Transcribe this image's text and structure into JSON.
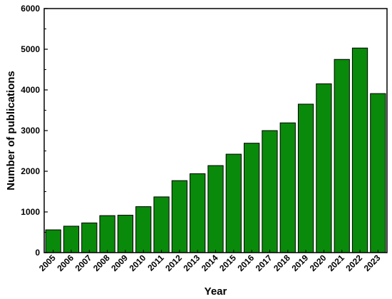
{
  "chart_data": {
    "type": "bar",
    "title": "",
    "xlabel": "Year",
    "ylabel": "Number of publications",
    "categories": [
      "2005",
      "2006",
      "2007",
      "2008",
      "2009",
      "2010",
      "2011",
      "2012",
      "2013",
      "2014",
      "2015",
      "2016",
      "2017",
      "2018",
      "2019",
      "2020",
      "2021",
      "2022",
      "2023"
    ],
    "values": [
      560,
      650,
      730,
      910,
      920,
      1130,
      1370,
      1770,
      1940,
      2140,
      2420,
      2690,
      3000,
      3190,
      3650,
      4150,
      4750,
      5030,
      3910
    ],
    "ylim": [
      0,
      6000
    ],
    "yticks": [
      0,
      1000,
      2000,
      3000,
      4000,
      5000,
      6000
    ],
    "grid": false,
    "colors": {
      "bar_fill": "#0a8a0a",
      "bar_stroke": "#000000"
    }
  }
}
